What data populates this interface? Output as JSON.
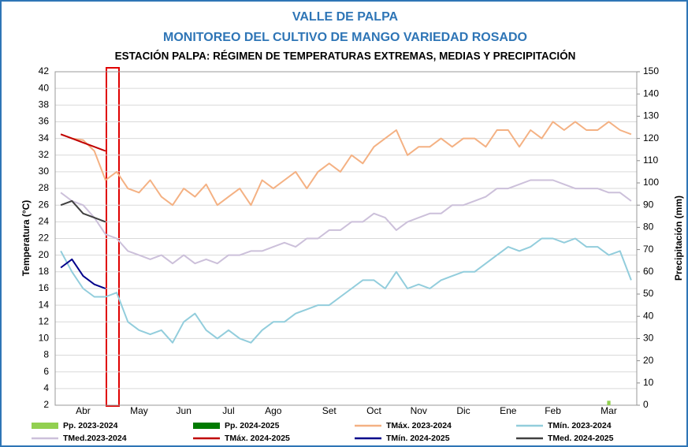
{
  "chart_data": {
    "type": "line",
    "title": "VALLE DE PALPA",
    "subtitle": "MONITOREO DEL CULTIVO DE MANGO VARIEDAD ROSADO",
    "subtitle2": "ESTACIÓN PALPA: RÉGIMEN DE TEMPERATURAS EXTREMAS, MEDIAS Y PRECIPITACIÓN",
    "y_label": "Temperatura (°C)",
    "y2_label": "Precipitación (mm)",
    "categories": [
      null,
      null,
      "Abr",
      null,
      null,
      null,
      null,
      "May",
      null,
      null,
      null,
      "Jun",
      null,
      null,
      null,
      "Jul",
      null,
      null,
      null,
      "Ago",
      null,
      null,
      null,
      null,
      "Set",
      null,
      null,
      null,
      "Oct",
      null,
      null,
      null,
      "Nov",
      null,
      null,
      null,
      "Dic",
      null,
      null,
      null,
      "Ene",
      null,
      null,
      null,
      "Feb",
      null,
      null,
      null,
      null,
      "Mar",
      null,
      null
    ],
    "ylim": [
      2,
      42
    ],
    "yticks": [
      2,
      4,
      6,
      8,
      10,
      12,
      14,
      16,
      18,
      20,
      22,
      24,
      26,
      28,
      30,
      32,
      34,
      36,
      38,
      40,
      42
    ],
    "y2lim": [
      0,
      150
    ],
    "y2ticks": [
      0,
      10,
      20,
      30,
      40,
      50,
      60,
      70,
      80,
      90,
      100,
      110,
      120,
      130,
      140,
      150
    ],
    "grid": true,
    "series": [
      {
        "name": "Pp. 2023-2024",
        "color": "#92d050",
        "type": "bar",
        "axis": "y2",
        "values": [
          null,
          null,
          null,
          null,
          null,
          null,
          null,
          null,
          null,
          null,
          null,
          null,
          null,
          null,
          null,
          null,
          null,
          null,
          null,
          null,
          null,
          null,
          null,
          null,
          null,
          null,
          null,
          null,
          null,
          null,
          null,
          null,
          null,
          null,
          null,
          null,
          null,
          null,
          null,
          null,
          null,
          null,
          null,
          null,
          null,
          null,
          null,
          null,
          null,
          2,
          null,
          null
        ]
      },
      {
        "name": "Pp. 2024-2025",
        "color": "#007a00",
        "type": "bar",
        "axis": "y2",
        "values": [
          null,
          null,
          null,
          null,
          null,
          null,
          null,
          null,
          null,
          null,
          null,
          null,
          null,
          null,
          null,
          null,
          null,
          null,
          null,
          null,
          null,
          null,
          null,
          null,
          null,
          null,
          null,
          null,
          null,
          null,
          null,
          null,
          null,
          null,
          null,
          null,
          null,
          null,
          null,
          null,
          null,
          null,
          null,
          null,
          null,
          null,
          null,
          null,
          null,
          null,
          null,
          null
        ]
      },
      {
        "name": "TMáx. 2023-2024",
        "color": "#f4b183",
        "values": [
          34.5,
          34,
          33.8,
          32.5,
          29,
          30,
          28,
          27.5,
          29,
          27,
          26,
          28,
          27,
          28.5,
          26,
          27,
          28,
          26,
          29,
          28,
          29,
          30,
          28,
          30,
          31,
          30,
          32,
          31,
          33,
          34,
          35,
          32,
          33,
          33,
          34,
          33,
          34,
          34,
          33,
          35,
          35,
          33,
          35,
          34,
          36,
          35,
          36,
          35,
          35,
          36,
          35,
          34.5
        ]
      },
      {
        "name": "TMín. 2023-2024",
        "color": "#92cddc",
        "values": [
          20.5,
          18,
          16,
          15,
          15,
          15.5,
          12,
          11,
          10.5,
          11,
          9.5,
          12,
          13,
          11,
          10,
          11,
          10,
          9.5,
          11,
          12,
          12,
          13,
          13.5,
          14,
          14,
          15,
          16,
          17,
          17,
          16,
          18,
          16,
          16.5,
          16,
          17,
          17.5,
          18,
          18,
          19,
          20,
          21,
          20.5,
          21,
          22,
          22,
          21.5,
          22,
          21,
          21,
          20,
          20.5,
          17
        ]
      },
      {
        "name": "TMed.2023-2024",
        "color": "#ccc0da",
        "values": [
          27.5,
          26.5,
          26,
          24.5,
          22.5,
          22,
          20.5,
          20,
          19.5,
          20,
          19,
          20,
          19,
          19.5,
          19,
          20,
          20,
          20.5,
          20.5,
          21,
          21.5,
          21,
          22,
          22,
          23,
          23,
          24,
          24,
          25,
          24.5,
          23,
          24,
          24.5,
          25,
          25,
          26,
          26,
          26.5,
          27,
          28,
          28,
          28.5,
          29,
          29,
          29,
          28.5,
          28,
          28,
          28,
          27.5,
          27.5,
          26.5
        ]
      },
      {
        "name": "TMáx. 2024-2025",
        "color": "#c00000",
        "values": [
          34.5,
          34,
          33.5,
          33,
          32.5,
          null,
          null,
          null,
          null,
          null,
          null,
          null,
          null,
          null,
          null,
          null,
          null,
          null,
          null,
          null,
          null,
          null,
          null,
          null,
          null,
          null,
          null,
          null,
          null,
          null,
          null,
          null,
          null,
          null,
          null,
          null,
          null,
          null,
          null,
          null,
          null,
          null,
          null,
          null,
          null,
          null,
          null,
          null,
          null,
          null,
          null,
          null
        ]
      },
      {
        "name": "TMín. 2024-2025",
        "color": "#00008b",
        "values": [
          18.5,
          19.5,
          17.5,
          16.5,
          16,
          null,
          null,
          null,
          null,
          null,
          null,
          null,
          null,
          null,
          null,
          null,
          null,
          null,
          null,
          null,
          null,
          null,
          null,
          null,
          null,
          null,
          null,
          null,
          null,
          null,
          null,
          null,
          null,
          null,
          null,
          null,
          null,
          null,
          null,
          null,
          null,
          null,
          null,
          null,
          null,
          null,
          null,
          null,
          null,
          null,
          null,
          null
        ]
      },
      {
        "name": "TMed. 2024-2025",
        "color": "#404040",
        "values": [
          26,
          26.5,
          25,
          24.5,
          24,
          null,
          null,
          null,
          null,
          null,
          null,
          null,
          null,
          null,
          null,
          null,
          null,
          null,
          null,
          null,
          null,
          null,
          null,
          null,
          null,
          null,
          null,
          null,
          null,
          null,
          null,
          null,
          null,
          null,
          null,
          null,
          null,
          null,
          null,
          null,
          null,
          null,
          null,
          null,
          null,
          null,
          null,
          null,
          null,
          null,
          null,
          null
        ]
      }
    ]
  }
}
